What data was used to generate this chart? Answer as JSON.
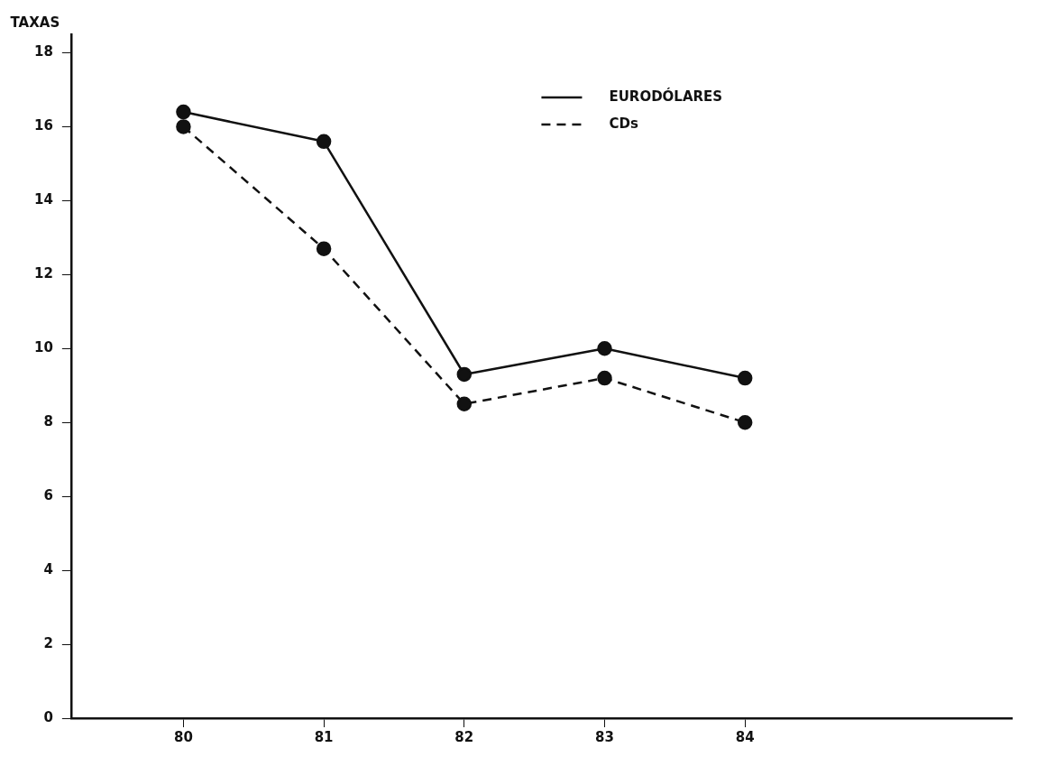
{
  "chart_data": {
    "type": "line",
    "ylabel": "TAXAS",
    "x": [
      80,
      81,
      82,
      83,
      84
    ],
    "series": [
      {
        "name": "EURODÓLARES",
        "color": "#111111",
        "values": [
          16.4,
          15.6,
          9.3,
          10.0,
          9.2
        ],
        "line_style": "solid"
      },
      {
        "name": "CDs",
        "color": "#111111",
        "values": [
          16.0,
          12.7,
          8.5,
          9.2,
          8.0
        ],
        "line_style": "dashed"
      }
    ],
    "xlim": [
      79.2,
      85.9
    ],
    "xticks": [
      80,
      81,
      82,
      83,
      84
    ],
    "ylim": [
      0,
      18.5
    ],
    "yticks": [
      0,
      2,
      4,
      6,
      8,
      10,
      12,
      14,
      16,
      18
    ],
    "marker": "circle",
    "grid": false,
    "legend": "top right"
  }
}
